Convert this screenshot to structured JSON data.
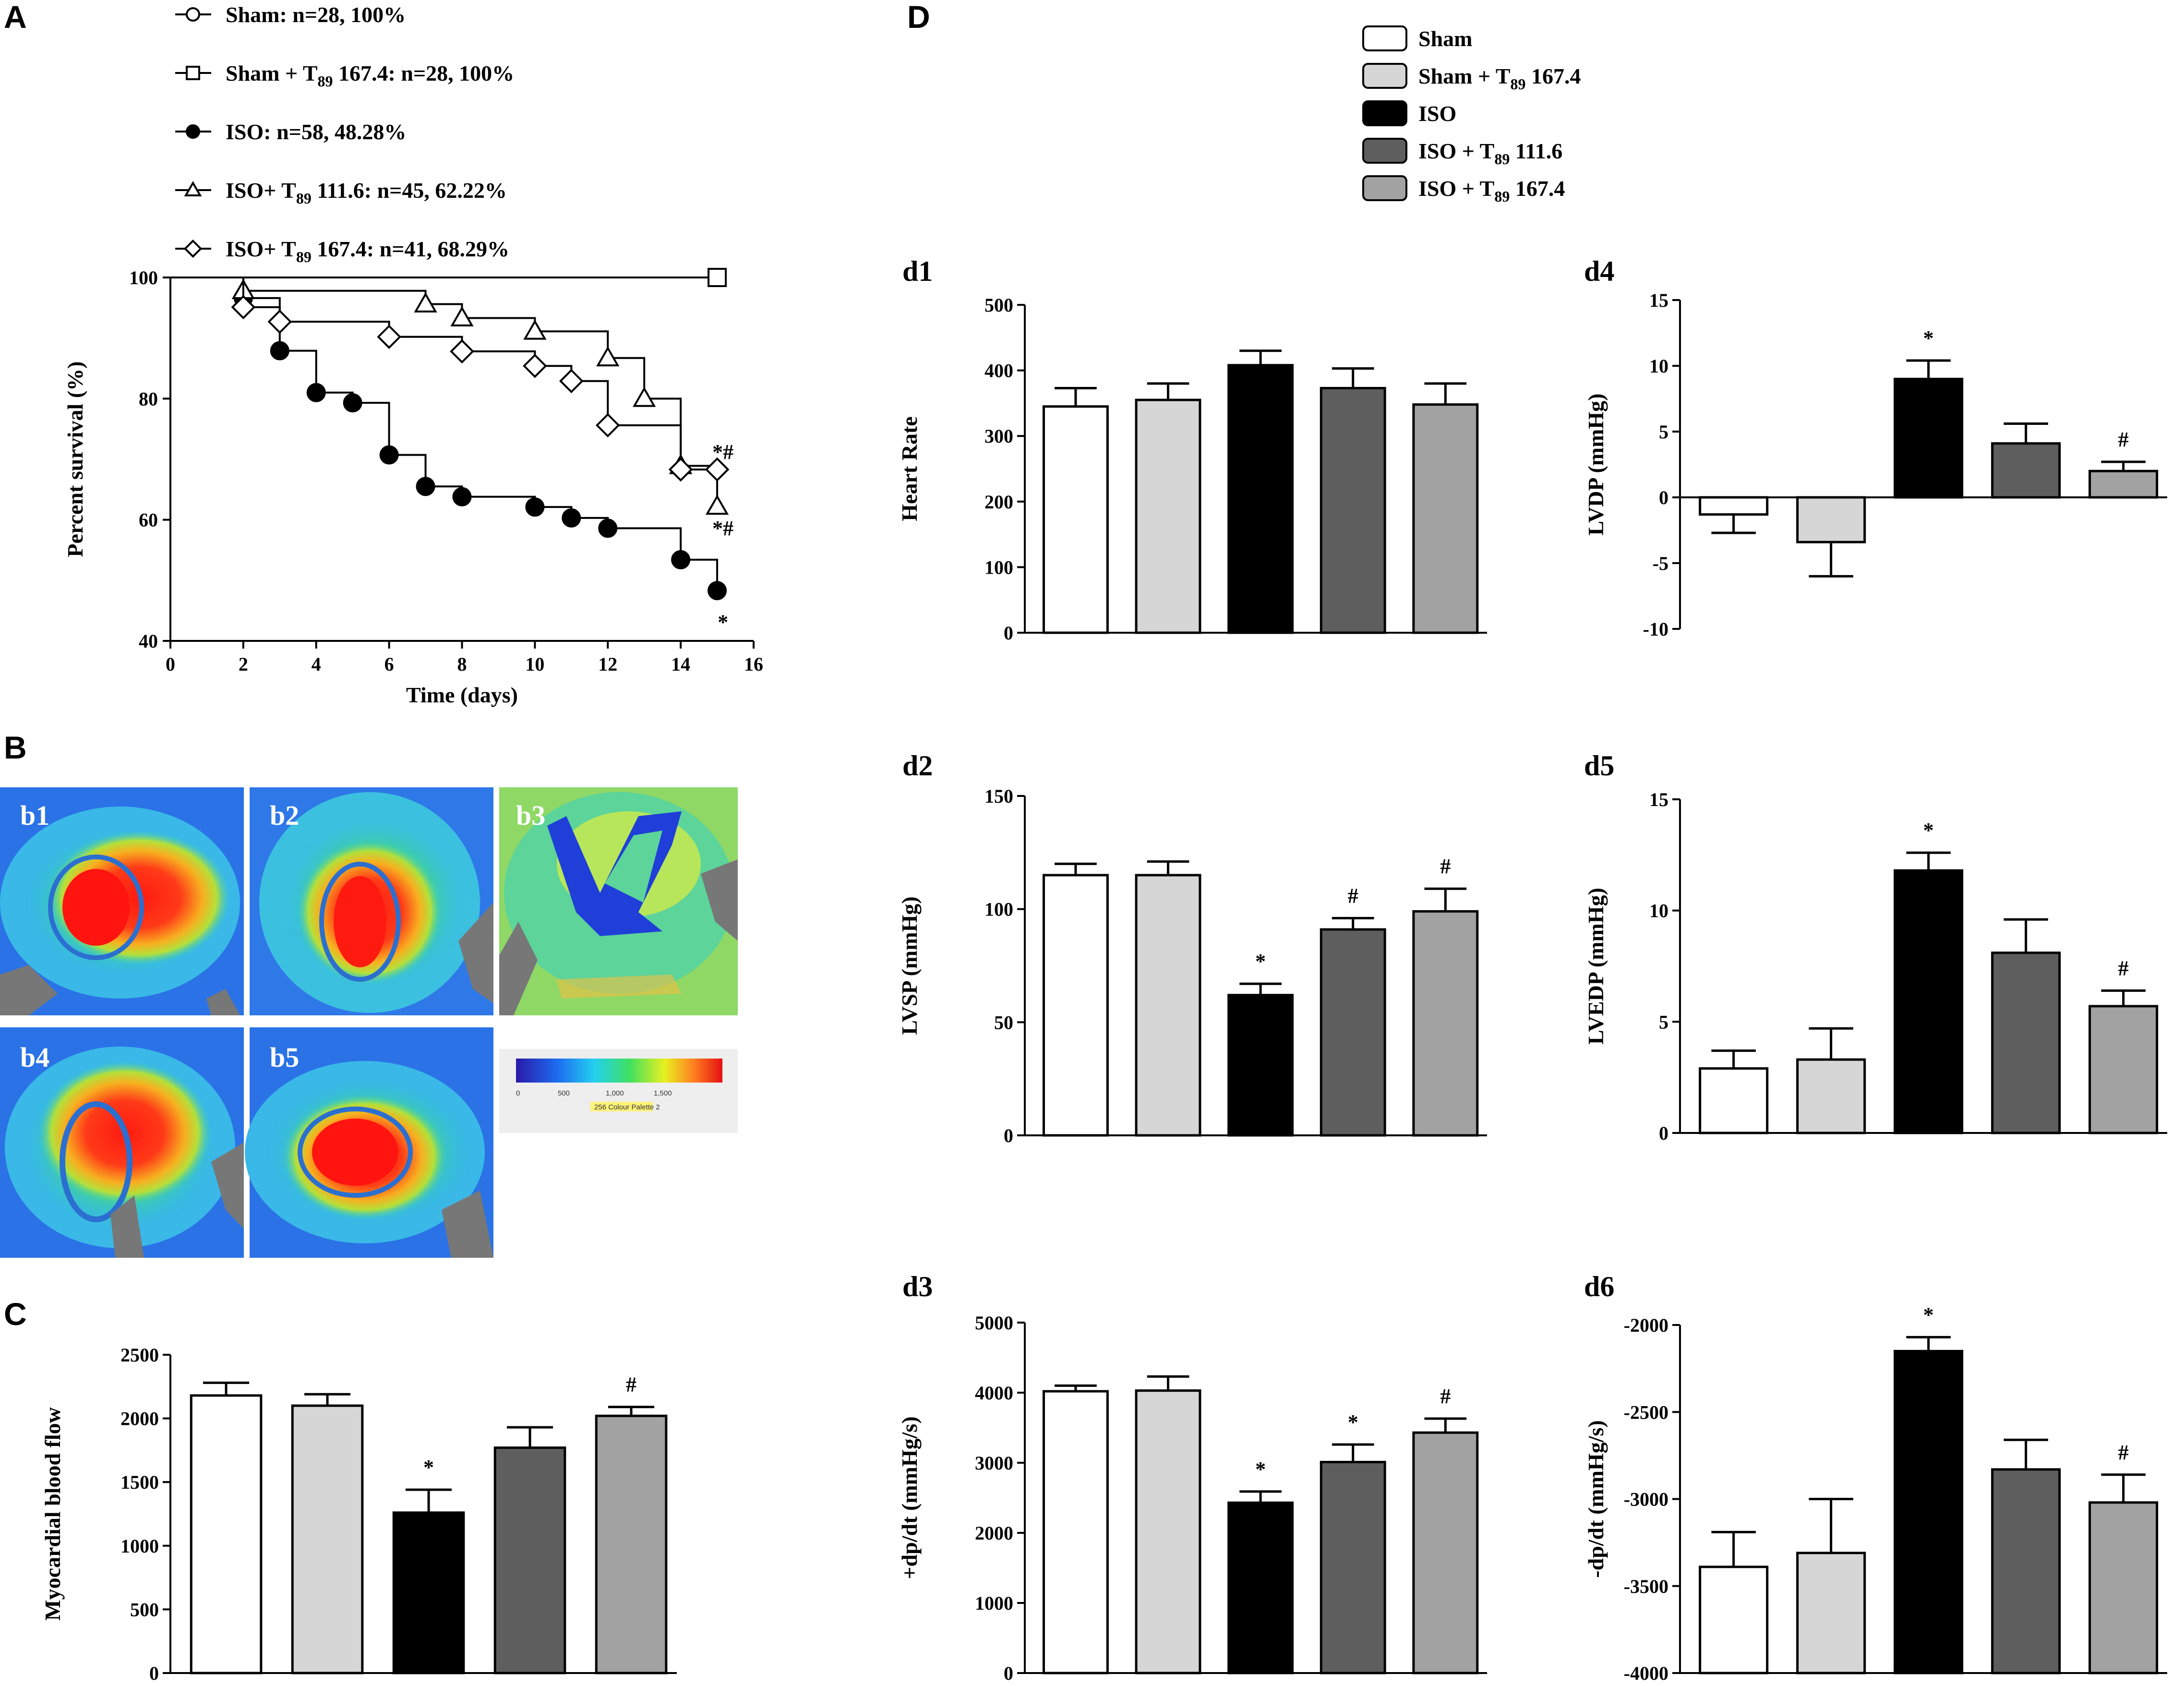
{
  "panel_labels": {
    "A": "A",
    "B": "B",
    "C": "C",
    "D": "D"
  },
  "colors": {
    "Sham": "#ffffff",
    "Sham + T89 167.4": "#d6d6d6",
    "ISO": "#000000",
    "ISO + T89 111.6": "#5e5e5e",
    "ISO + T89 167.4": "#a2a2a2"
  },
  "group_names": [
    "Sham",
    "Sham + T89 167.4",
    "ISO",
    "ISO + T89 111.6",
    "ISO + T89 167.4"
  ],
  "panel_d_legend": [
    {
      "prefix": "Sham",
      "subscript": "",
      "suffix": ""
    },
    {
      "prefix": "Sham + T",
      "subscript": "89",
      "suffix": " 167.4"
    },
    {
      "prefix": "ISO",
      "subscript": "",
      "suffix": ""
    },
    {
      "prefix": "ISO + T",
      "subscript": "89",
      "suffix": " 111.6"
    },
    {
      "prefix": "ISO + T",
      "subscript": "89",
      "suffix": " 167.4"
    }
  ],
  "panel_b": {
    "labels": [
      "b1",
      "b2",
      "b3",
      "b4",
      "b5"
    ],
    "colorbar_ticks": [
      "0",
      "500",
      "1,000",
      "1,500"
    ],
    "colorbar_caption": "256 Colour Palette 2"
  },
  "chart_data": [
    {
      "id": "A",
      "type": "line",
      "subtype": "kaplan-meier",
      "xlabel": "Time (days)",
      "ylabel": "Percent survival (%)",
      "xlim": [
        0,
        16
      ],
      "ylim": [
        40,
        100
      ],
      "xticks": [
        0,
        2,
        4,
        6,
        8,
        10,
        12,
        14,
        16
      ],
      "yticks": [
        40,
        60,
        80,
        100
      ],
      "legend": [
        {
          "name": "Sham",
          "marker": "circle-open",
          "prefix": "Sham: n=28, 100%",
          "subscript": "",
          "suffix": ""
        },
        {
          "name": "Sham + T89 167.4",
          "marker": "square-open",
          "prefix": "Sham + T",
          "subscript": "89",
          "suffix": " 167.4: n=28, 100%"
        },
        {
          "name": "ISO",
          "marker": "circle-filled",
          "prefix": "ISO: n=58, 48.28%",
          "subscript": "",
          "suffix": ""
        },
        {
          "name": "ISO + T89 111.6",
          "marker": "triangle-open",
          "prefix": "ISO+ T",
          "subscript": "89",
          "suffix": " 111.6: n=45, 62.22%"
        },
        {
          "name": "ISO + T89 167.4",
          "marker": "diamond-open",
          "prefix": "ISO+ T",
          "subscript": "89",
          "suffix": " 167.4: n=41, 68.29%"
        }
      ],
      "series": [
        {
          "name": "Sham",
          "marker": "circle-open",
          "steps": [
            [
              0,
              100
            ],
            [
              15,
              100
            ]
          ],
          "points": [
            [
              15,
              100
            ]
          ],
          "annotation": ""
        },
        {
          "name": "Sham + T89 167.4",
          "marker": "square-open",
          "steps": [
            [
              0,
              100
            ],
            [
              15,
              100
            ]
          ],
          "points": [
            [
              15,
              100
            ]
          ],
          "annotation": ""
        },
        {
          "name": "ISO",
          "marker": "circle-filled",
          "steps": [
            [
              0,
              100
            ],
            [
              2,
              96.6
            ],
            [
              3,
              87.9
            ],
            [
              4,
              81
            ],
            [
              5,
              79.3
            ],
            [
              6,
              70.7
            ],
            [
              7,
              65.5
            ],
            [
              8,
              63.8
            ],
            [
              10,
              62.1
            ],
            [
              11,
              60.3
            ],
            [
              12,
              58.6
            ],
            [
              14,
              53.4
            ],
            [
              15,
              48.3
            ]
          ],
          "points": [
            [
              2,
              96.6
            ],
            [
              3,
              87.9
            ],
            [
              4,
              81
            ],
            [
              5,
              79.3
            ],
            [
              6,
              70.7
            ],
            [
              7,
              65.5
            ],
            [
              8,
              63.8
            ],
            [
              10,
              62.1
            ],
            [
              11,
              60.3
            ],
            [
              12,
              58.6
            ],
            [
              14,
              53.4
            ],
            [
              15,
              48.3
            ]
          ],
          "annotation": "*"
        },
        {
          "name": "ISO + T89 111.6",
          "marker": "triangle-open",
          "steps": [
            [
              0,
              100
            ],
            [
              2,
              97.8
            ],
            [
              7,
              95.6
            ],
            [
              8,
              93.3
            ],
            [
              10,
              91.1
            ],
            [
              12,
              86.7
            ],
            [
              13,
              80
            ],
            [
              14,
              68.9
            ],
            [
              15,
              62.2
            ]
          ],
          "points": [
            [
              2,
              97.8
            ],
            [
              7,
              95.6
            ],
            [
              8,
              93.3
            ],
            [
              10,
              91.1
            ],
            [
              12,
              86.7
            ],
            [
              13,
              80
            ],
            [
              14,
              68.9
            ],
            [
              15,
              62.2
            ]
          ],
          "annotation": "*#"
        },
        {
          "name": "ISO + T89 167.4",
          "marker": "diamond-open",
          "steps": [
            [
              0,
              100
            ],
            [
              2,
              95.1
            ],
            [
              3,
              92.7
            ],
            [
              6,
              90.2
            ],
            [
              8,
              87.8
            ],
            [
              10,
              85.4
            ],
            [
              11,
              82.9
            ],
            [
              12,
              75.6
            ],
            [
              14,
              68.3
            ],
            [
              15,
              68.3
            ]
          ],
          "points": [
            [
              2,
              95.1
            ],
            [
              3,
              92.7
            ],
            [
              6,
              90.2
            ],
            [
              8,
              87.8
            ],
            [
              10,
              85.4
            ],
            [
              11,
              82.9
            ],
            [
              12,
              75.6
            ],
            [
              14,
              68.3
            ],
            [
              15,
              68.3
            ]
          ],
          "annotation": "*#"
        }
      ]
    },
    {
      "id": "C",
      "type": "bar",
      "title": "",
      "ylabel": "Myocardial blood flow",
      "ylim": [
        0,
        2500
      ],
      "yticks": [
        0,
        500,
        1000,
        1500,
        2000,
        2500
      ],
      "categories": [
        "Sham",
        "Sham + T89 167.4",
        "ISO",
        "ISO + T89 111.6",
        "ISO + T89 167.4"
      ],
      "values": [
        2180,
        2100,
        1260,
        1770,
        2020
      ],
      "errors": [
        100,
        90,
        180,
        160,
        70
      ],
      "marks": [
        "",
        "",
        "*",
        "",
        "#"
      ]
    },
    {
      "id": "d1",
      "type": "bar",
      "title": "d1",
      "ylabel": "Heart Rate",
      "ylim": [
        0,
        500
      ],
      "yticks": [
        0,
        100,
        200,
        300,
        400,
        500
      ],
      "categories": [
        "Sham",
        "Sham + T89 167.4",
        "ISO",
        "ISO + T89 111.6",
        "ISO + T89 167.4"
      ],
      "values": [
        345,
        355,
        408,
        373,
        348
      ],
      "errors": [
        28,
        25,
        22,
        30,
        32
      ],
      "marks": [
        "",
        "",
        "",
        "",
        ""
      ]
    },
    {
      "id": "d2",
      "type": "bar",
      "title": "d2",
      "ylabel": "LVSP (mmHg)",
      "ylim": [
        0,
        150
      ],
      "yticks": [
        0,
        50,
        100,
        150
      ],
      "categories": [
        "Sham",
        "Sham + T89 167.4",
        "ISO",
        "ISO + T89 111.6",
        "ISO + T89 167.4"
      ],
      "values": [
        115,
        115,
        62,
        91,
        99
      ],
      "errors": [
        5,
        6,
        5,
        5,
        10
      ],
      "marks": [
        "",
        "",
        "*",
        "#",
        "#"
      ]
    },
    {
      "id": "d3",
      "type": "bar",
      "title": "d3",
      "ylabel": "+dp/dt (mmHg/s)",
      "ylim": [
        0,
        5000
      ],
      "yticks": [
        0,
        1000,
        2000,
        3000,
        4000,
        5000
      ],
      "categories": [
        "Sham",
        "Sham + T89 167.4",
        "ISO",
        "ISO + T89 111.6",
        "ISO + T89 167.4"
      ],
      "values": [
        4020,
        4030,
        2430,
        3010,
        3430
      ],
      "errors": [
        80,
        200,
        160,
        250,
        200
      ],
      "marks": [
        "",
        "",
        "*",
        "*",
        "#"
      ]
    },
    {
      "id": "d4",
      "type": "bar",
      "title": "d4",
      "ylabel": "LVDP (mmHg)",
      "ylim": [
        -10,
        15
      ],
      "yticks": [
        -10,
        -5,
        0,
        5,
        10,
        15
      ],
      "categories": [
        "Sham",
        "Sham + T89 167.4",
        "ISO",
        "ISO + T89 111.6",
        "ISO + T89 167.4"
      ],
      "values": [
        -1.3,
        -3.4,
        9.0,
        4.1,
        2.0
      ],
      "errors": [
        1.4,
        2.6,
        1.4,
        1.5,
        0.7
      ],
      "marks": [
        "",
        "",
        "*",
        "",
        "#"
      ]
    },
    {
      "id": "d5",
      "type": "bar",
      "title": "d5",
      "ylabel": "LVEDP (mmHg)",
      "ylim": [
        0,
        15
      ],
      "yticks": [
        0,
        5,
        10,
        15
      ],
      "categories": [
        "Sham",
        "Sham + T89 167.4",
        "ISO",
        "ISO + T89 111.6",
        "ISO + T89 167.4"
      ],
      "values": [
        2.9,
        3.3,
        11.8,
        8.1,
        5.7
      ],
      "errors": [
        0.8,
        1.4,
        0.8,
        1.5,
        0.7
      ],
      "marks": [
        "",
        "",
        "*",
        "",
        "#"
      ]
    },
    {
      "id": "d6",
      "type": "bar",
      "title": "d6",
      "ylabel": "-dp/dt (mmHg/s)",
      "ylim": [
        -4000,
        -2000
      ],
      "yticks": [
        -4000,
        -3500,
        -3000,
        -2500,
        -2000
      ],
      "baseline": -4000,
      "categories": [
        "Sham",
        "Sham + T89 167.4",
        "ISO",
        "ISO + T89 111.6",
        "ISO + T89 167.4"
      ],
      "values": [
        -3390,
        -3310,
        -2150,
        -2830,
        -3020
      ],
      "errors": [
        200,
        310,
        80,
        170,
        160
      ],
      "marks": [
        "",
        "",
        "*",
        "",
        "#"
      ]
    }
  ]
}
